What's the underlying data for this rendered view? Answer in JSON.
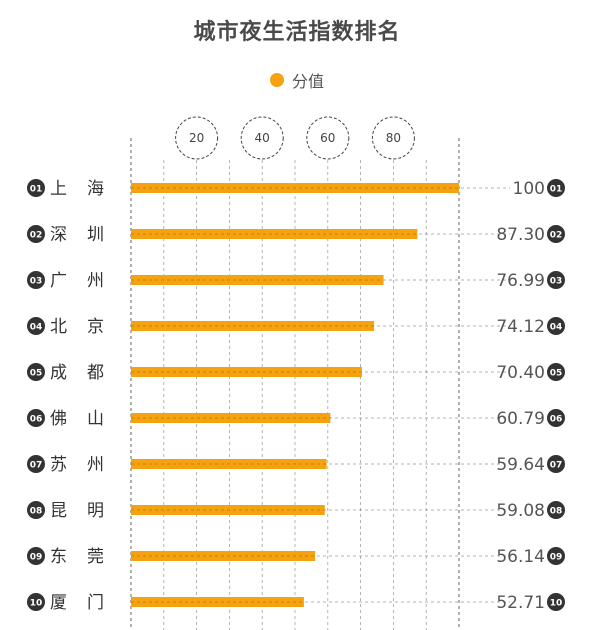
{
  "title": "城市夜生活指数排名",
  "legend": {
    "label": "分值",
    "color": "#F5A210"
  },
  "colors": {
    "bar": "#F5A210",
    "badge": "#333333",
    "grid": "#555555"
  },
  "chart_data": {
    "type": "bar",
    "orientation": "horizontal",
    "title": "城市夜生活指数排名",
    "xlim": [
      0,
      100
    ],
    "xticks": [
      "20",
      "40",
      "60",
      "80"
    ],
    "series": [
      {
        "name": "分值",
        "values": [
          100,
          87.3,
          76.99,
          74.12,
          70.4,
          60.79,
          59.64,
          59.08,
          56.14,
          52.71
        ]
      }
    ],
    "rows": [
      {
        "rank": "01",
        "city": [
          "上",
          "海"
        ],
        "value": 100,
        "label": "100"
      },
      {
        "rank": "02",
        "city": [
          "深",
          "圳"
        ],
        "value": 87.3,
        "label": "87.30"
      },
      {
        "rank": "03",
        "city": [
          "广",
          "州"
        ],
        "value": 76.99,
        "label": "76.99"
      },
      {
        "rank": "04",
        "city": [
          "北",
          "京"
        ],
        "value": 74.12,
        "label": "74.12"
      },
      {
        "rank": "05",
        "city": [
          "成",
          "都"
        ],
        "value": 70.4,
        "label": "70.40"
      },
      {
        "rank": "06",
        "city": [
          "佛",
          "山"
        ],
        "value": 60.79,
        "label": "60.79"
      },
      {
        "rank": "07",
        "city": [
          "苏",
          "州"
        ],
        "value": 59.64,
        "label": "59.64"
      },
      {
        "rank": "08",
        "city": [
          "昆",
          "明"
        ],
        "value": 59.08,
        "label": "59.08"
      },
      {
        "rank": "09",
        "city": [
          "东",
          "莞"
        ],
        "value": 56.14,
        "label": "56.14"
      },
      {
        "rank": "10",
        "city": [
          "厦",
          "门"
        ],
        "value": 52.71,
        "label": "52.71"
      }
    ]
  }
}
